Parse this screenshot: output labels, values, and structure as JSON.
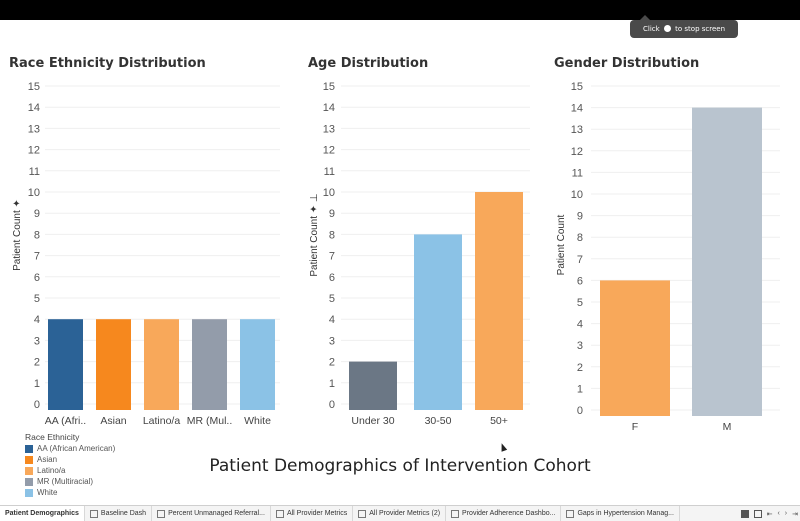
{
  "recording_tooltip": {
    "before": "Click",
    "after": "to stop screen recording"
  },
  "charts": {
    "race": {
      "title": "Race Ethnicity Distribution",
      "ylabel": "Patient Count ✦"
    },
    "age": {
      "title": "Age Distribution",
      "ylabel": "Patient Count ✦ ⊥"
    },
    "gender": {
      "title": "Gender Distribution",
      "ylabel": "Patient Count"
    }
  },
  "chart_data": [
    {
      "type": "bar",
      "title": "Race Ethnicity Distribution",
      "ylabel": "Patient Count",
      "categories": [
        "AA (Afri..",
        "Asian",
        "Latino/a",
        "MR (Mul..",
        "White"
      ],
      "values": [
        4,
        4,
        4,
        4,
        4
      ],
      "colors": [
        "#2b6296",
        "#f6881e",
        "#f8a85a",
        "#939caa",
        "#8bc2e6"
      ],
      "ylim": [
        0,
        15
      ],
      "grid": true
    },
    {
      "type": "bar",
      "title": "Age Distribution",
      "ylabel": "Patient Count",
      "categories": [
        "Under 30",
        "30-50",
        "50+"
      ],
      "values": [
        2,
        8,
        10
      ],
      "colors": [
        "#6b7785",
        "#8bc2e6",
        "#f8a85a"
      ],
      "ylim": [
        0,
        15
      ],
      "grid": true
    },
    {
      "type": "bar",
      "title": "Gender Distribution",
      "ylabel": "Patient Count",
      "categories": [
        "F",
        "M"
      ],
      "values": [
        6,
        14
      ],
      "colors": [
        "#f8a85a",
        "#b9c4cf"
      ],
      "ylim": [
        0,
        15
      ],
      "grid": true
    }
  ],
  "legend": {
    "title": "Race Ethnicity",
    "items": [
      {
        "label": "AA (African American)",
        "color": "#2b6296"
      },
      {
        "label": "Asian",
        "color": "#f6881e"
      },
      {
        "label": "Latino/a",
        "color": "#f8a85a"
      },
      {
        "label": "MR (Multiracial)",
        "color": "#939caa"
      },
      {
        "label": "White",
        "color": "#8bc2e6"
      }
    ]
  },
  "footer_title": "Patient Demographics of Intervention Cohort",
  "tabs": [
    {
      "label": "Patient Demographics",
      "active": true
    },
    {
      "label": "Baseline Dash",
      "active": false
    },
    {
      "label": "Percent Unmanaged Referral...",
      "active": false
    },
    {
      "label": "All Provider Metrics",
      "active": false
    },
    {
      "label": "All Provider Metrics (2)",
      "active": false
    },
    {
      "label": "Provider Adherence Dashbo...",
      "active": false
    },
    {
      "label": "Gaps in Hypertension Manag...",
      "active": false
    }
  ]
}
